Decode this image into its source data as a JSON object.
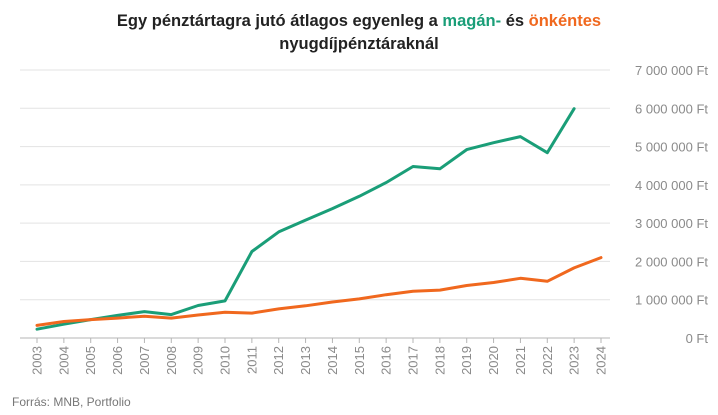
{
  "chart_data": {
    "type": "line",
    "title": {
      "part1": "Egy pénztártagra jutó átlagos egyenleg a ",
      "highlight1": "magán-",
      "part2": " és ",
      "highlight2": "önkéntes",
      "line2": "nyugdíjpénztáraknál"
    },
    "x": [
      "2003",
      "2004",
      "2005",
      "2006",
      "2007",
      "2008",
      "2009",
      "2010",
      "2011",
      "2012",
      "2013",
      "2014",
      "2015",
      "2016",
      "2017",
      "2018",
      "2019",
      "2020",
      "2021",
      "2022",
      "2023",
      "2024"
    ],
    "series": [
      {
        "color": "#1a9e78",
        "values": [
          230000,
          360000,
          480000,
          590000,
          690000,
          610000,
          850000,
          970000,
          2260000,
          2770000,
          3080000,
          3380000,
          3700000,
          4060000,
          4480000,
          4420000,
          4920000,
          5100000,
          5260000,
          4840000,
          5990000,
          null
        ]
      },
      {
        "color": "#f0681e",
        "values": [
          330000,
          430000,
          480000,
          520000,
          570000,
          520000,
          600000,
          670000,
          650000,
          760000,
          840000,
          940000,
          1020000,
          1130000,
          1220000,
          1250000,
          1370000,
          1450000,
          1560000,
          1480000,
          1830000,
          2100000
        ]
      }
    ],
    "y_ticks": [
      "0 Ft",
      "1 000 000 Ft",
      "2 000 000 Ft",
      "3 000 000 Ft",
      "4 000 000 Ft",
      "5 000 000 Ft",
      "6 000 000 Ft",
      "7 000 000 Ft"
    ],
    "ylim": [
      0,
      7000000
    ],
    "grid": true,
    "legend": "none"
  },
  "source": "Forrás: MNB, Portfolio",
  "colors": {
    "gridline": "#e3e3e3",
    "axis": "#b5b5b5"
  }
}
